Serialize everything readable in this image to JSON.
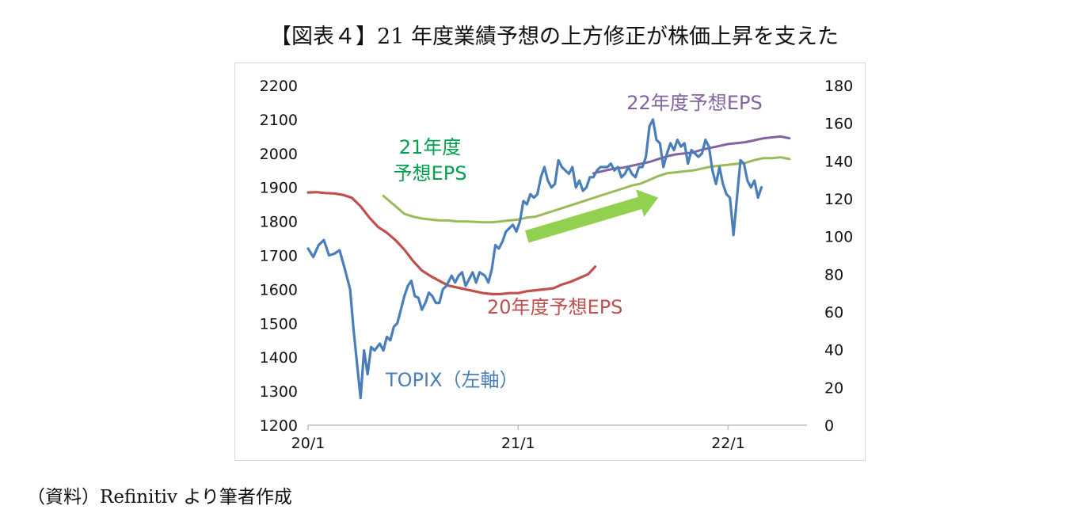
{
  "title": "【図表４】21 年度業績予想の上方修正が株価上昇を支えた",
  "source": "（資料）Refinitiv より筆者作成",
  "colors": {
    "topix": "#4a7ebb",
    "eps20": "#c0504d",
    "eps21": "#9bbb59",
    "eps22": "#8064a2",
    "arrow": "#92d050",
    "label21": "#00a050"
  },
  "chart_data": {
    "type": "line",
    "x_ticks": [
      "20/1",
      "21/1",
      "22/1"
    ],
    "x_tick_months": [
      0,
      12,
      24
    ],
    "xlim_months": [
      0,
      28.5
    ],
    "left_axis": {
      "ticks": [
        1200,
        1300,
        1400,
        1500,
        1600,
        1700,
        1800,
        1900,
        2000,
        2100,
        2200
      ],
      "ylim": [
        1200,
        2200
      ]
    },
    "right_axis": {
      "ticks": [
        0,
        20,
        40,
        60,
        80,
        100,
        120,
        140,
        160,
        180
      ],
      "ylim": [
        0,
        180
      ]
    },
    "annotations": [
      {
        "key": "arrow",
        "from_month": 12.5,
        "to_month": 20.0,
        "from_y": 1755,
        "to_y": 1870,
        "axis": "left"
      }
    ],
    "series": [
      {
        "name": "TOPIX（左軸）",
        "axis": "left",
        "color_key": "topix",
        "label_lines": [
          "TOPIX（左軸）"
        ],
        "points": [
          [
            0,
            1720
          ],
          [
            0.3,
            1695
          ],
          [
            0.6,
            1730
          ],
          [
            0.9,
            1745
          ],
          [
            1.2,
            1700
          ],
          [
            1.5,
            1705
          ],
          [
            1.8,
            1715
          ],
          [
            2.1,
            1660
          ],
          [
            2.4,
            1600
          ],
          [
            2.6,
            1480
          ],
          [
            2.8,
            1380
          ],
          [
            3.0,
            1280
          ],
          [
            3.2,
            1420
          ],
          [
            3.4,
            1350
          ],
          [
            3.6,
            1430
          ],
          [
            3.8,
            1420
          ],
          [
            4.1,
            1440
          ],
          [
            4.3,
            1420
          ],
          [
            4.5,
            1460
          ],
          [
            4.7,
            1450
          ],
          [
            4.9,
            1490
          ],
          [
            5.1,
            1500
          ],
          [
            5.3,
            1540
          ],
          [
            5.5,
            1580
          ],
          [
            5.7,
            1610
          ],
          [
            5.9,
            1625
          ],
          [
            6.1,
            1580
          ],
          [
            6.3,
            1575
          ],
          [
            6.5,
            1540
          ],
          [
            6.7,
            1560
          ],
          [
            6.9,
            1590
          ],
          [
            7.1,
            1580
          ],
          [
            7.3,
            1560
          ],
          [
            7.5,
            1560
          ],
          [
            7.7,
            1600
          ],
          [
            7.9,
            1610
          ],
          [
            8.2,
            1640
          ],
          [
            8.4,
            1620
          ],
          [
            8.6,
            1640
          ],
          [
            8.8,
            1650
          ],
          [
            9.0,
            1610
          ],
          [
            9.2,
            1630
          ],
          [
            9.4,
            1650
          ],
          [
            9.6,
            1620
          ],
          [
            9.8,
            1650
          ],
          [
            10.1,
            1640
          ],
          [
            10.3,
            1620
          ],
          [
            10.5,
            1660
          ],
          [
            10.7,
            1730
          ],
          [
            10.9,
            1720
          ],
          [
            11.1,
            1740
          ],
          [
            11.3,
            1770
          ],
          [
            11.5,
            1780
          ],
          [
            11.7,
            1790
          ],
          [
            11.9,
            1770
          ],
          [
            12.1,
            1800
          ],
          [
            12.3,
            1860
          ],
          [
            12.5,
            1850
          ],
          [
            12.7,
            1880
          ],
          [
            12.9,
            1870
          ],
          [
            13.1,
            1880
          ],
          [
            13.3,
            1930
          ],
          [
            13.5,
            1960
          ],
          [
            13.7,
            1920
          ],
          [
            13.9,
            1900
          ],
          [
            14.1,
            1910
          ],
          [
            14.3,
            1980
          ],
          [
            14.5,
            1960
          ],
          [
            14.7,
            1950
          ],
          [
            14.9,
            1940
          ],
          [
            15.1,
            1960
          ],
          [
            15.3,
            1900
          ],
          [
            15.5,
            1920
          ],
          [
            15.7,
            1890
          ],
          [
            15.9,
            1900
          ],
          [
            16.1,
            1930
          ],
          [
            16.3,
            1930
          ],
          [
            16.5,
            1950
          ],
          [
            16.7,
            1960
          ],
          [
            16.9,
            1960
          ],
          [
            17.1,
            1960
          ],
          [
            17.3,
            1970
          ],
          [
            17.5,
            1950
          ],
          [
            17.7,
            1960
          ],
          [
            17.9,
            1930
          ],
          [
            18.1,
            1940
          ],
          [
            18.3,
            1960
          ],
          [
            18.5,
            1940
          ],
          [
            18.7,
            1930
          ],
          [
            18.9,
            1960
          ],
          [
            19.1,
            1960
          ],
          [
            19.3,
            1990
          ],
          [
            19.5,
            2080
          ],
          [
            19.7,
            2100
          ],
          [
            19.9,
            2040
          ],
          [
            20.1,
            2030
          ],
          [
            20.3,
            1960
          ],
          [
            20.5,
            2000
          ],
          [
            20.7,
            2030
          ],
          [
            20.9,
            2010
          ],
          [
            21.1,
            2040
          ],
          [
            21.3,
            2020
          ],
          [
            21.5,
            2030
          ],
          [
            21.7,
            1970
          ],
          [
            21.9,
            2010
          ],
          [
            22.1,
            2000
          ],
          [
            22.3,
            1990
          ],
          [
            22.5,
            2000
          ],
          [
            22.7,
            2040
          ],
          [
            22.9,
            2020
          ],
          [
            23.1,
            1950
          ],
          [
            23.3,
            1910
          ],
          [
            23.5,
            1960
          ],
          [
            23.7,
            1910
          ],
          [
            23.9,
            1880
          ],
          [
            24.1,
            1870
          ],
          [
            24.3,
            1760
          ],
          [
            24.5,
            1870
          ],
          [
            24.7,
            1980
          ],
          [
            24.9,
            1970
          ],
          [
            25.1,
            1920
          ],
          [
            25.3,
            1900
          ],
          [
            25.5,
            1920
          ],
          [
            25.7,
            1870
          ],
          [
            25.9,
            1900
          ]
        ]
      },
      {
        "name": "20年度予想EPS",
        "axis": "right",
        "color_key": "eps20",
        "label_lines": [
          "20年度予想EPS"
        ],
        "points": [
          [
            0,
            123.3
          ],
          [
            0.5,
            123.5
          ],
          [
            1.0,
            123.0
          ],
          [
            1.5,
            122.8
          ],
          [
            2.0,
            122.0
          ],
          [
            2.5,
            120.5
          ],
          [
            3.0,
            116.0
          ],
          [
            3.5,
            110.0
          ],
          [
            4.0,
            105.0
          ],
          [
            4.5,
            102.0
          ],
          [
            5.0,
            98.0
          ],
          [
            5.5,
            93.0
          ],
          [
            6.0,
            87.0
          ],
          [
            6.5,
            82.0
          ],
          [
            7.0,
            79.0
          ],
          [
            7.5,
            76.5
          ],
          [
            8.0,
            74.0
          ],
          [
            8.5,
            73.0
          ],
          [
            9.0,
            72.0
          ],
          [
            9.5,
            71.0
          ],
          [
            10.0,
            70.0
          ],
          [
            10.5,
            69.5
          ],
          [
            11.0,
            69.5
          ],
          [
            11.5,
            70.0
          ],
          [
            12.0,
            70.0
          ],
          [
            12.5,
            71.0
          ],
          [
            13.0,
            71.5
          ],
          [
            13.5,
            72.0
          ],
          [
            14.0,
            72.5
          ],
          [
            14.5,
            74.5
          ],
          [
            15.0,
            76.0
          ],
          [
            15.5,
            78.0
          ],
          [
            16.0,
            80.0
          ],
          [
            16.4,
            84.0
          ]
        ]
      },
      {
        "name": "21年度予想EPS",
        "axis": "right",
        "color_key": "eps21",
        "label_lines": [
          "21年度",
          "予想EPS"
        ],
        "points": [
          [
            4.3,
            121.5
          ],
          [
            5.0,
            116.0
          ],
          [
            5.5,
            112.0
          ],
          [
            6.0,
            110.5
          ],
          [
            6.5,
            109.5
          ],
          [
            7.0,
            109.0
          ],
          [
            7.5,
            108.5
          ],
          [
            8.0,
            108.5
          ],
          [
            8.5,
            108.0
          ],
          [
            9.0,
            108.0
          ],
          [
            9.5,
            107.8
          ],
          [
            10.0,
            107.5
          ],
          [
            10.5,
            107.5
          ],
          [
            11.0,
            108.0
          ],
          [
            11.5,
            108.5
          ],
          [
            12.0,
            109.0
          ],
          [
            12.5,
            110.0
          ],
          [
            13.0,
            110.5
          ],
          [
            13.5,
            112.0
          ],
          [
            14.0,
            113.5
          ],
          [
            14.5,
            115.0
          ],
          [
            15.0,
            116.5
          ],
          [
            15.5,
            118.0
          ],
          [
            16.0,
            119.5
          ],
          [
            16.5,
            121.0
          ],
          [
            17.0,
            122.5
          ],
          [
            17.5,
            124.0
          ],
          [
            18.0,
            125.5
          ],
          [
            18.5,
            127.0
          ],
          [
            19.0,
            128.0
          ],
          [
            19.5,
            130.0
          ],
          [
            20.0,
            132.0
          ],
          [
            20.5,
            133.5
          ],
          [
            21.0,
            134.0
          ],
          [
            21.5,
            134.5
          ],
          [
            22.0,
            135.0
          ],
          [
            22.5,
            136.0
          ],
          [
            23.0,
            137.0
          ],
          [
            23.5,
            137.5
          ],
          [
            24.0,
            138.0
          ],
          [
            24.5,
            138.5
          ],
          [
            25.0,
            139.0
          ],
          [
            25.5,
            140.5
          ],
          [
            26.0,
            141.5
          ],
          [
            26.5,
            141.5
          ],
          [
            27.0,
            142.0
          ],
          [
            27.5,
            141.0
          ]
        ]
      },
      {
        "name": "22年度予想EPS",
        "axis": "right",
        "color_key": "eps22",
        "label_lines": [
          "22年度予想EPS"
        ],
        "points": [
          [
            16.3,
            133.5
          ],
          [
            17.0,
            135.0
          ],
          [
            17.5,
            136.0
          ],
          [
            18.0,
            136.5
          ],
          [
            18.5,
            137.5
          ],
          [
            19.0,
            138.5
          ],
          [
            19.5,
            139.5
          ],
          [
            20.0,
            141.0
          ],
          [
            20.5,
            142.5
          ],
          [
            21.0,
            143.5
          ],
          [
            21.5,
            144.0
          ],
          [
            22.0,
            144.5
          ],
          [
            22.5,
            146.0
          ],
          [
            23.0,
            147.0
          ],
          [
            23.5,
            148.0
          ],
          [
            24.0,
            149.0
          ],
          [
            24.5,
            149.5
          ],
          [
            25.0,
            150.0
          ],
          [
            25.5,
            151.0
          ],
          [
            26.0,
            152.0
          ],
          [
            26.5,
            152.5
          ],
          [
            27.0,
            153.0
          ],
          [
            27.5,
            152.0
          ]
        ]
      }
    ]
  }
}
